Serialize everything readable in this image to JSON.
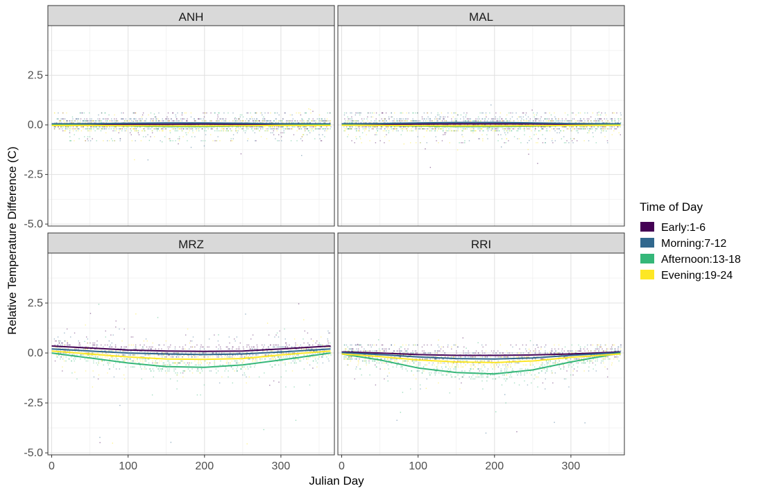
{
  "chart_data": {
    "type": "scatter",
    "facets": [
      "ANH",
      "MAL",
      "MRZ",
      "RRI"
    ],
    "xlabel": "Julian Day",
    "ylabel": "Relative Temperature Difference (C)",
    "xlim": [
      -5,
      370
    ],
    "ylim": [
      -5.1,
      5.0
    ],
    "x_ticks": [
      0,
      100,
      200,
      300
    ],
    "y_ticks": [
      2.5,
      0.0,
      -2.5,
      -5.0
    ],
    "x_tick_labels": [
      "0",
      "100",
      "200",
      "300"
    ],
    "y_tick_labels": [
      "2.5",
      "0.0",
      "-2.5",
      "-5.0"
    ],
    "grid": true,
    "legend": {
      "title": "Time of Day",
      "position": "right",
      "entries": [
        {
          "label": "Early:1-6",
          "color": "#440154"
        },
        {
          "label": "Morning:7-12",
          "color": "#31688E"
        },
        {
          "label": "Afternoon:13-18",
          "color": "#35B779"
        },
        {
          "label": "Evening:19-24",
          "color": "#FDE725"
        }
      ]
    },
    "smooth_lines": {
      "ANH": [
        {
          "series": "Early:1-6",
          "x": [
            0,
            50,
            100,
            150,
            200,
            250,
            300,
            365
          ],
          "y": [
            0.02,
            0.02,
            0.03,
            0.03,
            0.04,
            0.03,
            0.02,
            0.02
          ]
        },
        {
          "series": "Morning:7-12",
          "x": [
            0,
            50,
            100,
            150,
            200,
            250,
            300,
            365
          ],
          "y": [
            0.05,
            0.06,
            0.08,
            0.1,
            0.1,
            0.08,
            0.06,
            0.05
          ]
        },
        {
          "series": "Afternoon:13-18",
          "x": [
            0,
            50,
            100,
            150,
            200,
            250,
            300,
            365
          ],
          "y": [
            0.0,
            -0.02,
            -0.05,
            -0.08,
            -0.08,
            -0.05,
            -0.02,
            0.0
          ]
        },
        {
          "series": "Evening:19-24",
          "x": [
            0,
            50,
            100,
            150,
            200,
            250,
            300,
            365
          ],
          "y": [
            -0.03,
            -0.03,
            -0.04,
            -0.05,
            -0.05,
            -0.04,
            -0.03,
            -0.03
          ]
        }
      ],
      "MAL": [
        {
          "series": "Early:1-6",
          "x": [
            0,
            50,
            100,
            150,
            200,
            250,
            300,
            365
          ],
          "y": [
            0.02,
            0.03,
            0.04,
            0.05,
            0.05,
            0.05,
            0.03,
            0.02
          ]
        },
        {
          "series": "Morning:7-12",
          "x": [
            0,
            50,
            100,
            150,
            200,
            250,
            300,
            365
          ],
          "y": [
            0.05,
            0.07,
            0.1,
            0.12,
            0.12,
            0.1,
            0.07,
            0.05
          ]
        },
        {
          "series": "Afternoon:13-18",
          "x": [
            0,
            50,
            100,
            150,
            200,
            250,
            300,
            365
          ],
          "y": [
            0.0,
            -0.03,
            -0.06,
            -0.08,
            -0.08,
            -0.06,
            -0.03,
            0.0
          ]
        },
        {
          "series": "Evening:19-24",
          "x": [
            0,
            50,
            100,
            150,
            200,
            250,
            300,
            365
          ],
          "y": [
            -0.02,
            -0.03,
            -0.04,
            -0.05,
            -0.05,
            -0.04,
            -0.03,
            -0.02
          ]
        }
      ],
      "MRZ": [
        {
          "series": "Early:1-6",
          "x": [
            0,
            50,
            100,
            150,
            200,
            250,
            300,
            365
          ],
          "y": [
            0.35,
            0.25,
            0.15,
            0.1,
            0.08,
            0.1,
            0.2,
            0.35
          ]
        },
        {
          "series": "Morning:7-12",
          "x": [
            0,
            50,
            100,
            150,
            200,
            250,
            300,
            365
          ],
          "y": [
            0.2,
            0.1,
            0.0,
            -0.05,
            -0.08,
            -0.05,
            0.05,
            0.2
          ]
        },
        {
          "series": "Afternoon:13-18",
          "x": [
            0,
            50,
            100,
            150,
            200,
            250,
            300,
            365
          ],
          "y": [
            0.0,
            -0.25,
            -0.5,
            -0.68,
            -0.72,
            -0.6,
            -0.35,
            0.0
          ]
        },
        {
          "series": "Evening:19-24",
          "x": [
            0,
            50,
            100,
            150,
            200,
            250,
            300,
            365
          ],
          "y": [
            0.1,
            -0.05,
            -0.2,
            -0.3,
            -0.32,
            -0.28,
            -0.1,
            0.1
          ]
        }
      ],
      "RRI": [
        {
          "series": "Early:1-6",
          "x": [
            0,
            50,
            100,
            150,
            200,
            250,
            300,
            365
          ],
          "y": [
            0.05,
            0.0,
            -0.08,
            -0.12,
            -0.12,
            -0.1,
            -0.05,
            0.05
          ]
        },
        {
          "series": "Morning:7-12",
          "x": [
            0,
            50,
            100,
            150,
            200,
            250,
            300,
            365
          ],
          "y": [
            0.02,
            -0.08,
            -0.2,
            -0.28,
            -0.3,
            -0.25,
            -0.12,
            0.02
          ]
        },
        {
          "series": "Afternoon:13-18",
          "x": [
            0,
            50,
            100,
            150,
            200,
            250,
            300,
            365
          ],
          "y": [
            -0.05,
            -0.35,
            -0.75,
            -0.98,
            -1.05,
            -0.85,
            -0.45,
            0.0
          ]
        },
        {
          "series": "Evening:19-24",
          "x": [
            0,
            50,
            100,
            150,
            200,
            250,
            300,
            365
          ],
          "y": [
            -0.05,
            -0.18,
            -0.35,
            -0.45,
            -0.48,
            -0.4,
            -0.22,
            -0.05
          ]
        }
      ]
    },
    "scatter_spread": {
      "ANH": {
        "upper": 0.6,
        "lower": -0.8,
        "outliers_hi": 1.0,
        "outliers_lo": -1.8
      },
      "MAL": {
        "upper": 0.6,
        "lower": -0.9,
        "outliers_hi": 1.2,
        "outliers_lo": -2.3
      },
      "MRZ": {
        "upper": 1.6,
        "lower": -2.8,
        "outliers_hi": 2.6,
        "outliers_lo": -4.8
      },
      "RRI": {
        "upper": 0.4,
        "lower": -3.0,
        "outliers_hi": 0.9,
        "outliers_lo": -4.1
      }
    }
  }
}
